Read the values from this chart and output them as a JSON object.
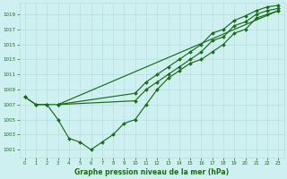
{
  "title": "Graphe pression niveau de la mer (hPa)",
  "bg_color": "#cef0f0",
  "grid_color": "#b8dede",
  "line_color": "#1a6b1a",
  "xlim": [
    -0.5,
    23.5
  ],
  "ylim": [
    1000,
    1020.5
  ],
  "yticks": [
    1001,
    1003,
    1005,
    1007,
    1009,
    1011,
    1013,
    1015,
    1017,
    1019
  ],
  "xticks": [
    0,
    1,
    2,
    3,
    4,
    5,
    6,
    7,
    8,
    9,
    10,
    11,
    12,
    13,
    14,
    15,
    16,
    17,
    18,
    19,
    20,
    21,
    22,
    23
  ],
  "line1_x": [
    0,
    1,
    2,
    3,
    4,
    5,
    6,
    7,
    8,
    9,
    10,
    11,
    12,
    13,
    14,
    15,
    16,
    17,
    18,
    19,
    20,
    21,
    22,
    23
  ],
  "line1_y": [
    1008,
    1007,
    1007,
    1005,
    1002.5,
    1002,
    1001,
    1002,
    1003,
    1004.5,
    1005,
    1007,
    1009,
    1010.5,
    1011.5,
    1012.5,
    1013,
    1014,
    1015,
    1016.5,
    1017,
    1018.5,
    1019,
    1019.5
  ],
  "line2_x": [
    0,
    1,
    2,
    3,
    23
  ],
  "line2_y": [
    1008,
    1007,
    1007,
    1007,
    1019.5
  ],
  "line3_x": [
    3,
    10,
    11,
    12,
    13,
    14,
    15,
    16,
    17,
    18,
    19,
    20,
    21,
    22,
    23
  ],
  "line3_y": [
    1007,
    1007.5,
    1009,
    1010,
    1011,
    1012,
    1013,
    1014,
    1015.5,
    1016,
    1017.5,
    1018,
    1019,
    1019.5,
    1019.8
  ],
  "line4_x": [
    3,
    10,
    11,
    12,
    13,
    14,
    15,
    16,
    17,
    18,
    19,
    20,
    21,
    22,
    23
  ],
  "line4_y": [
    1007,
    1008.5,
    1010,
    1011,
    1012,
    1013,
    1014,
    1015,
    1016.5,
    1017,
    1018.2,
    1018.8,
    1019.5,
    1020,
    1020.2
  ]
}
